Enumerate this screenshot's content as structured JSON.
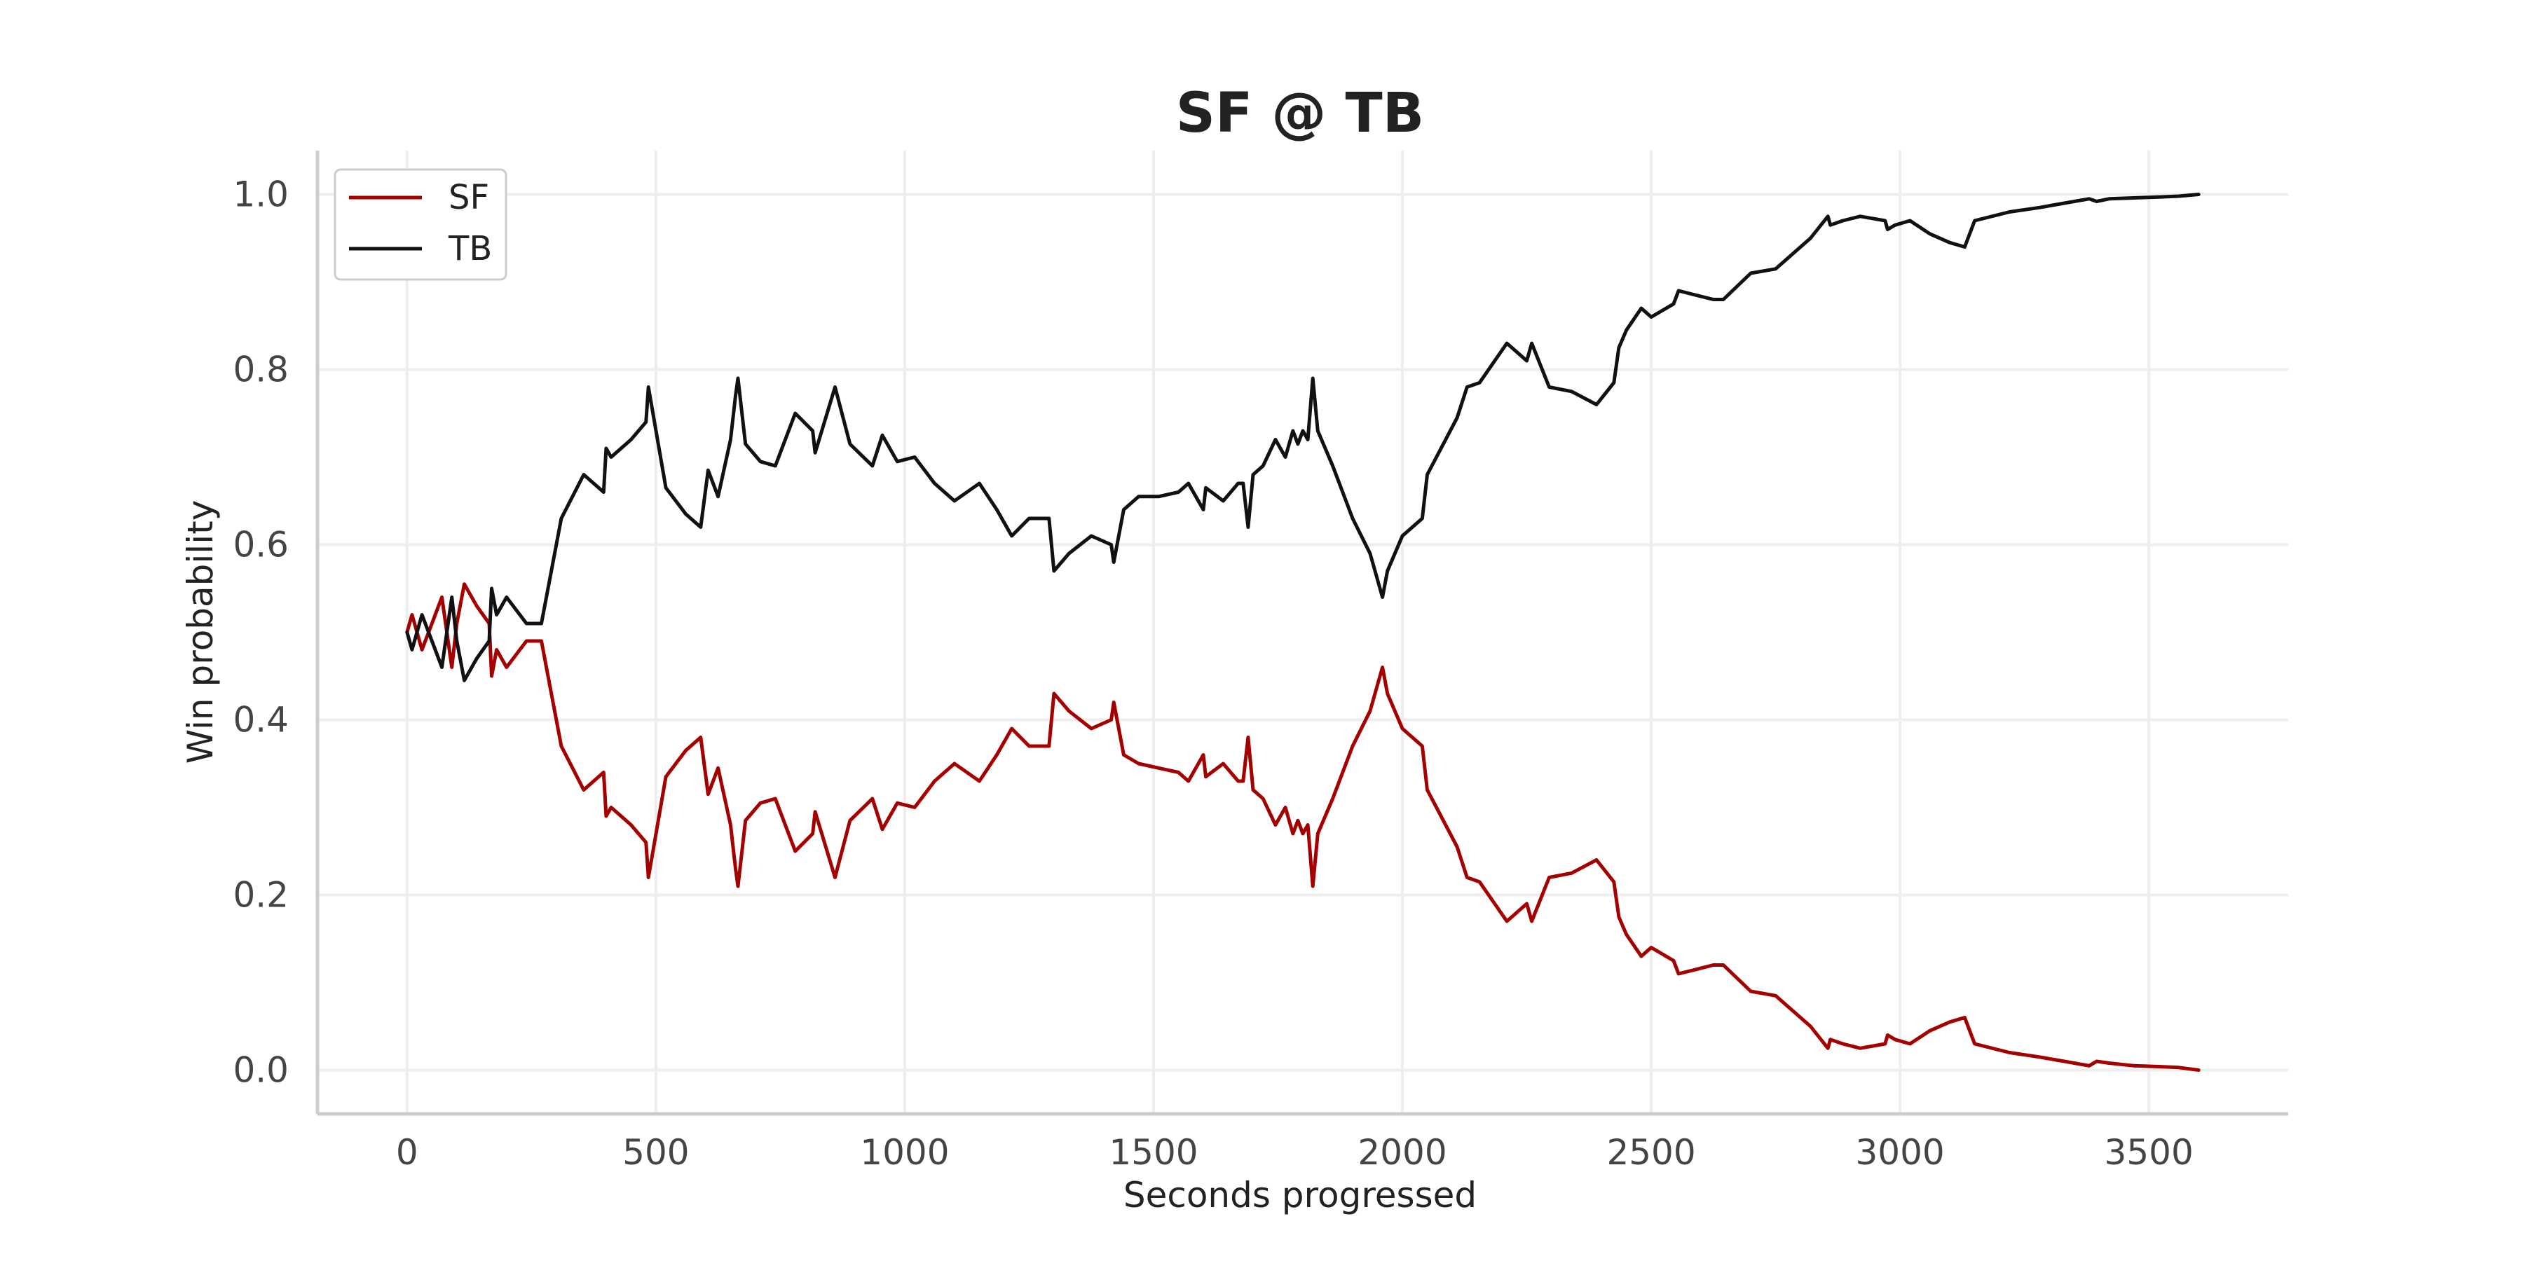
{
  "chart_data": {
    "type": "line",
    "title": "SF @ TB",
    "xlabel": "Seconds progressed",
    "ylabel": "Win probability",
    "xlim": [
      -180,
      3780
    ],
    "ylim": [
      -0.05,
      1.05
    ],
    "xticks": [
      0,
      500,
      1000,
      1500,
      2000,
      2500,
      3000,
      3500
    ],
    "xtick_labels": [
      "0",
      "500",
      "1000",
      "1500",
      "2000",
      "2500",
      "3000",
      "3500"
    ],
    "yticks": [
      0.0,
      0.2,
      0.4,
      0.6,
      0.8,
      1.0
    ],
    "ytick_labels": [
      "0.0",
      "0.2",
      "0.4",
      "0.6",
      "0.8",
      "1.0"
    ],
    "grid": true,
    "legend_position": "top-left",
    "series": [
      {
        "name": "SF",
        "color": "#a50000",
        "x": [
          0,
          10,
          30,
          50,
          70,
          90,
          100,
          115,
          140,
          165,
          170,
          180,
          200,
          220,
          240,
          270,
          310,
          355,
          395,
          400,
          410,
          450,
          480,
          485,
          520,
          560,
          590,
          605,
          625,
          650,
          660,
          665,
          680,
          710,
          740,
          780,
          815,
          820,
          860,
          890,
          935,
          955,
          985,
          1020,
          1060,
          1100,
          1150,
          1185,
          1215,
          1250,
          1290,
          1300,
          1330,
          1375,
          1415,
          1420,
          1440,
          1470,
          1510,
          1550,
          1570,
          1600,
          1605,
          1640,
          1670,
          1680,
          1690,
          1700,
          1720,
          1745,
          1765,
          1780,
          1790,
          1800,
          1810,
          1820,
          1830,
          1860,
          1900,
          1935,
          1960,
          1970,
          2000,
          2040,
          2050,
          2110,
          2130,
          2155,
          2210,
          2250,
          2260,
          2295,
          2340,
          2390,
          2425,
          2435,
          2450,
          2480,
          2500,
          2545,
          2555,
          2590,
          2625,
          2645,
          2700,
          2750,
          2820,
          2855,
          2860,
          2885,
          2920,
          2970,
          2975,
          2990,
          3020,
          3060,
          3100,
          3130,
          3150,
          3220,
          3280,
          3330,
          3380,
          3395,
          3420,
          3470,
          3520,
          3560,
          3600
        ],
        "values": [
          0.5,
          0.52,
          0.48,
          0.51,
          0.54,
          0.46,
          0.51,
          0.555,
          0.53,
          0.51,
          0.45,
          0.48,
          0.46,
          0.475,
          0.49,
          0.49,
          0.37,
          0.32,
          0.34,
          0.29,
          0.3,
          0.28,
          0.26,
          0.22,
          0.335,
          0.365,
          0.38,
          0.315,
          0.345,
          0.28,
          0.23,
          0.21,
          0.285,
          0.305,
          0.31,
          0.25,
          0.27,
          0.295,
          0.22,
          0.285,
          0.31,
          0.275,
          0.305,
          0.3,
          0.33,
          0.35,
          0.33,
          0.36,
          0.39,
          0.37,
          0.37,
          0.43,
          0.41,
          0.39,
          0.4,
          0.42,
          0.36,
          0.35,
          0.345,
          0.34,
          0.33,
          0.36,
          0.335,
          0.35,
          0.33,
          0.33,
          0.38,
          0.32,
          0.31,
          0.28,
          0.3,
          0.27,
          0.285,
          0.27,
          0.28,
          0.21,
          0.27,
          0.31,
          0.37,
          0.41,
          0.46,
          0.43,
          0.39,
          0.37,
          0.32,
          0.255,
          0.22,
          0.215,
          0.17,
          0.19,
          0.17,
          0.22,
          0.225,
          0.24,
          0.215,
          0.175,
          0.155,
          0.13,
          0.14,
          0.125,
          0.11,
          0.115,
          0.12,
          0.12,
          0.09,
          0.085,
          0.05,
          0.025,
          0.035,
          0.03,
          0.025,
          0.03,
          0.04,
          0.035,
          0.03,
          0.045,
          0.055,
          0.06,
          0.03,
          0.02,
          0.015,
          0.01,
          0.005,
          0.01,
          0.008,
          0.005,
          0.004,
          0.003,
          0.0
        ]
      },
      {
        "name": "TB",
        "color": "#111111",
        "x": [
          0,
          10,
          30,
          50,
          70,
          90,
          100,
          115,
          140,
          165,
          170,
          180,
          200,
          220,
          240,
          270,
          310,
          355,
          395,
          400,
          410,
          450,
          480,
          485,
          520,
          560,
          590,
          605,
          625,
          650,
          660,
          665,
          680,
          710,
          740,
          780,
          815,
          820,
          860,
          890,
          935,
          955,
          985,
          1020,
          1060,
          1100,
          1150,
          1185,
          1215,
          1250,
          1290,
          1300,
          1330,
          1375,
          1415,
          1420,
          1440,
          1470,
          1510,
          1550,
          1570,
          1600,
          1605,
          1640,
          1670,
          1680,
          1690,
          1700,
          1720,
          1745,
          1765,
          1780,
          1790,
          1800,
          1810,
          1820,
          1830,
          1860,
          1900,
          1935,
          1960,
          1970,
          2000,
          2040,
          2050,
          2110,
          2130,
          2155,
          2210,
          2250,
          2260,
          2295,
          2340,
          2390,
          2425,
          2435,
          2450,
          2480,
          2500,
          2545,
          2555,
          2590,
          2625,
          2645,
          2700,
          2750,
          2820,
          2855,
          2860,
          2885,
          2920,
          2970,
          2975,
          2990,
          3020,
          3060,
          3100,
          3130,
          3150,
          3220,
          3280,
          3330,
          3380,
          3395,
          3420,
          3470,
          3520,
          3560,
          3600
        ],
        "values": [
          0.5,
          0.48,
          0.52,
          0.49,
          0.46,
          0.54,
          0.49,
          0.445,
          0.47,
          0.49,
          0.55,
          0.52,
          0.54,
          0.525,
          0.51,
          0.51,
          0.63,
          0.68,
          0.66,
          0.71,
          0.7,
          0.72,
          0.74,
          0.78,
          0.665,
          0.635,
          0.62,
          0.685,
          0.655,
          0.72,
          0.77,
          0.79,
          0.715,
          0.695,
          0.69,
          0.75,
          0.73,
          0.705,
          0.78,
          0.715,
          0.69,
          0.725,
          0.695,
          0.7,
          0.67,
          0.65,
          0.67,
          0.64,
          0.61,
          0.63,
          0.63,
          0.57,
          0.59,
          0.61,
          0.6,
          0.58,
          0.64,
          0.655,
          0.655,
          0.66,
          0.67,
          0.64,
          0.665,
          0.65,
          0.67,
          0.67,
          0.62,
          0.68,
          0.69,
          0.72,
          0.7,
          0.73,
          0.715,
          0.73,
          0.72,
          0.79,
          0.73,
          0.69,
          0.63,
          0.59,
          0.54,
          0.57,
          0.61,
          0.63,
          0.68,
          0.745,
          0.78,
          0.785,
          0.83,
          0.81,
          0.83,
          0.78,
          0.775,
          0.76,
          0.785,
          0.825,
          0.845,
          0.87,
          0.86,
          0.875,
          0.89,
          0.885,
          0.88,
          0.88,
          0.91,
          0.915,
          0.95,
          0.975,
          0.965,
          0.97,
          0.975,
          0.97,
          0.96,
          0.965,
          0.97,
          0.955,
          0.945,
          0.94,
          0.97,
          0.98,
          0.985,
          0.99,
          0.995,
          0.992,
          0.995,
          0.996,
          0.997,
          0.998,
          1.0
        ]
      }
    ]
  }
}
